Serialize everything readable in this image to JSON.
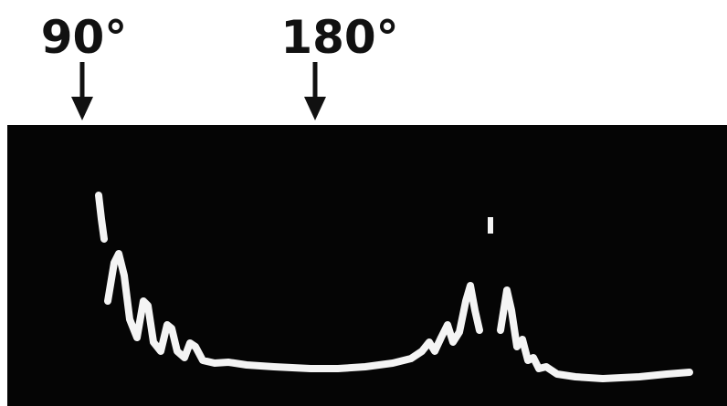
{
  "labels": [
    "90°",
    "180°"
  ]
}
